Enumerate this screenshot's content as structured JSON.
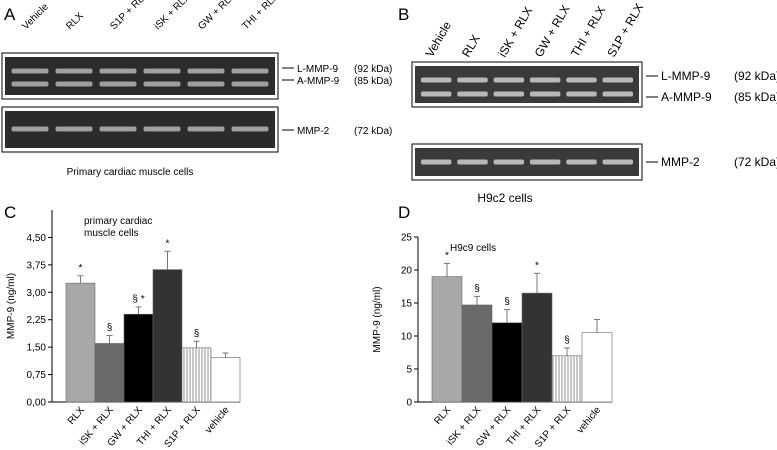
{
  "panel_labels": [
    "A",
    "B",
    "C",
    "D"
  ],
  "gel_a": {
    "lanes": [
      "Vehicle",
      "RLX",
      "S1P + RLX",
      "iSK + RLX",
      "GW + RLX",
      "THI + RLX"
    ],
    "bands": [
      "L-MMP-9",
      "A-MMP-9",
      "MMP-2"
    ],
    "sizes": [
      "(92 kDa)",
      "(85 kDa)",
      "(72 kDa)"
    ],
    "caption": "Primary cardiac muscle cells"
  },
  "gel_b": {
    "lanes": [
      "Vehicle",
      "RLX",
      "iSK + RLX",
      "GW + RLX",
      "THI + RLX",
      "S1P + RLX"
    ],
    "bands": [
      "L-MMP-9",
      "A-MMP-9",
      "MMP-2"
    ],
    "sizes": [
      "(92 kDa)",
      "(85 kDa)",
      "(72 kDa)"
    ],
    "caption": "H9c2 cells"
  },
  "chart_data": [
    {
      "type": "bar",
      "y_label": "MMP-9 (ng/ml)",
      "note_lines": [
        "primary cardiac",
        "muscle cells"
      ],
      "categories": [
        "RLX",
        "iSK + RLX",
        "GW + RLX",
        "THI + RLX",
        "S1P + RLX",
        "vehicle"
      ],
      "values": [
        3.25,
        1.6,
        2.4,
        3.62,
        1.48,
        1.22
      ],
      "errors": [
        0.2,
        0.22,
        0.2,
        0.5,
        0.18,
        0.12
      ],
      "annotations": [
        "*",
        "§",
        "§ *",
        "*",
        "§",
        null
      ],
      "colors": [
        "#a8a8a8",
        "#6a6a6a",
        "#000000",
        "#333333",
        "#ffffff",
        "#ffffff"
      ],
      "hatched": [
        false,
        false,
        false,
        false,
        true,
        false
      ],
      "ylim": [
        0,
        5.25
      ],
      "yticks": [
        {
          "value": 0,
          "label": "0,00"
        },
        {
          "value": 0.75,
          "label": "0,75"
        },
        {
          "value": 1.5,
          "label": "1,50"
        },
        {
          "value": 2.25,
          "label": "2,25"
        },
        {
          "value": 3,
          "label": "3,00"
        },
        {
          "value": 3.75,
          "label": "3,75"
        },
        {
          "value": 4.5,
          "label": "4,50"
        }
      ]
    },
    {
      "type": "bar",
      "y_label": "MMP-9 (ng/ml)",
      "note_lines": [
        "H9c9 cells"
      ],
      "categories": [
        "RLX",
        "iSK + RLX",
        "GW + RLX",
        "THI + RLX",
        "S1P + RLX",
        "vehicle"
      ],
      "values": [
        19,
        14.7,
        12,
        16.5,
        7,
        10.5
      ],
      "errors": [
        2,
        1.3,
        2,
        3,
        1.2,
        2
      ],
      "annotations": [
        "*",
        "§",
        "§",
        "*",
        "§",
        null
      ],
      "colors": [
        "#a8a8a8",
        "#6a6a6a",
        "#000000",
        "#333333",
        "#ffffff",
        "#ffffff"
      ],
      "hatched": [
        false,
        false,
        false,
        false,
        true,
        false
      ],
      "ylim": [
        0,
        25
      ],
      "yticks": [
        0,
        5,
        10,
        15,
        20,
        25
      ]
    }
  ]
}
